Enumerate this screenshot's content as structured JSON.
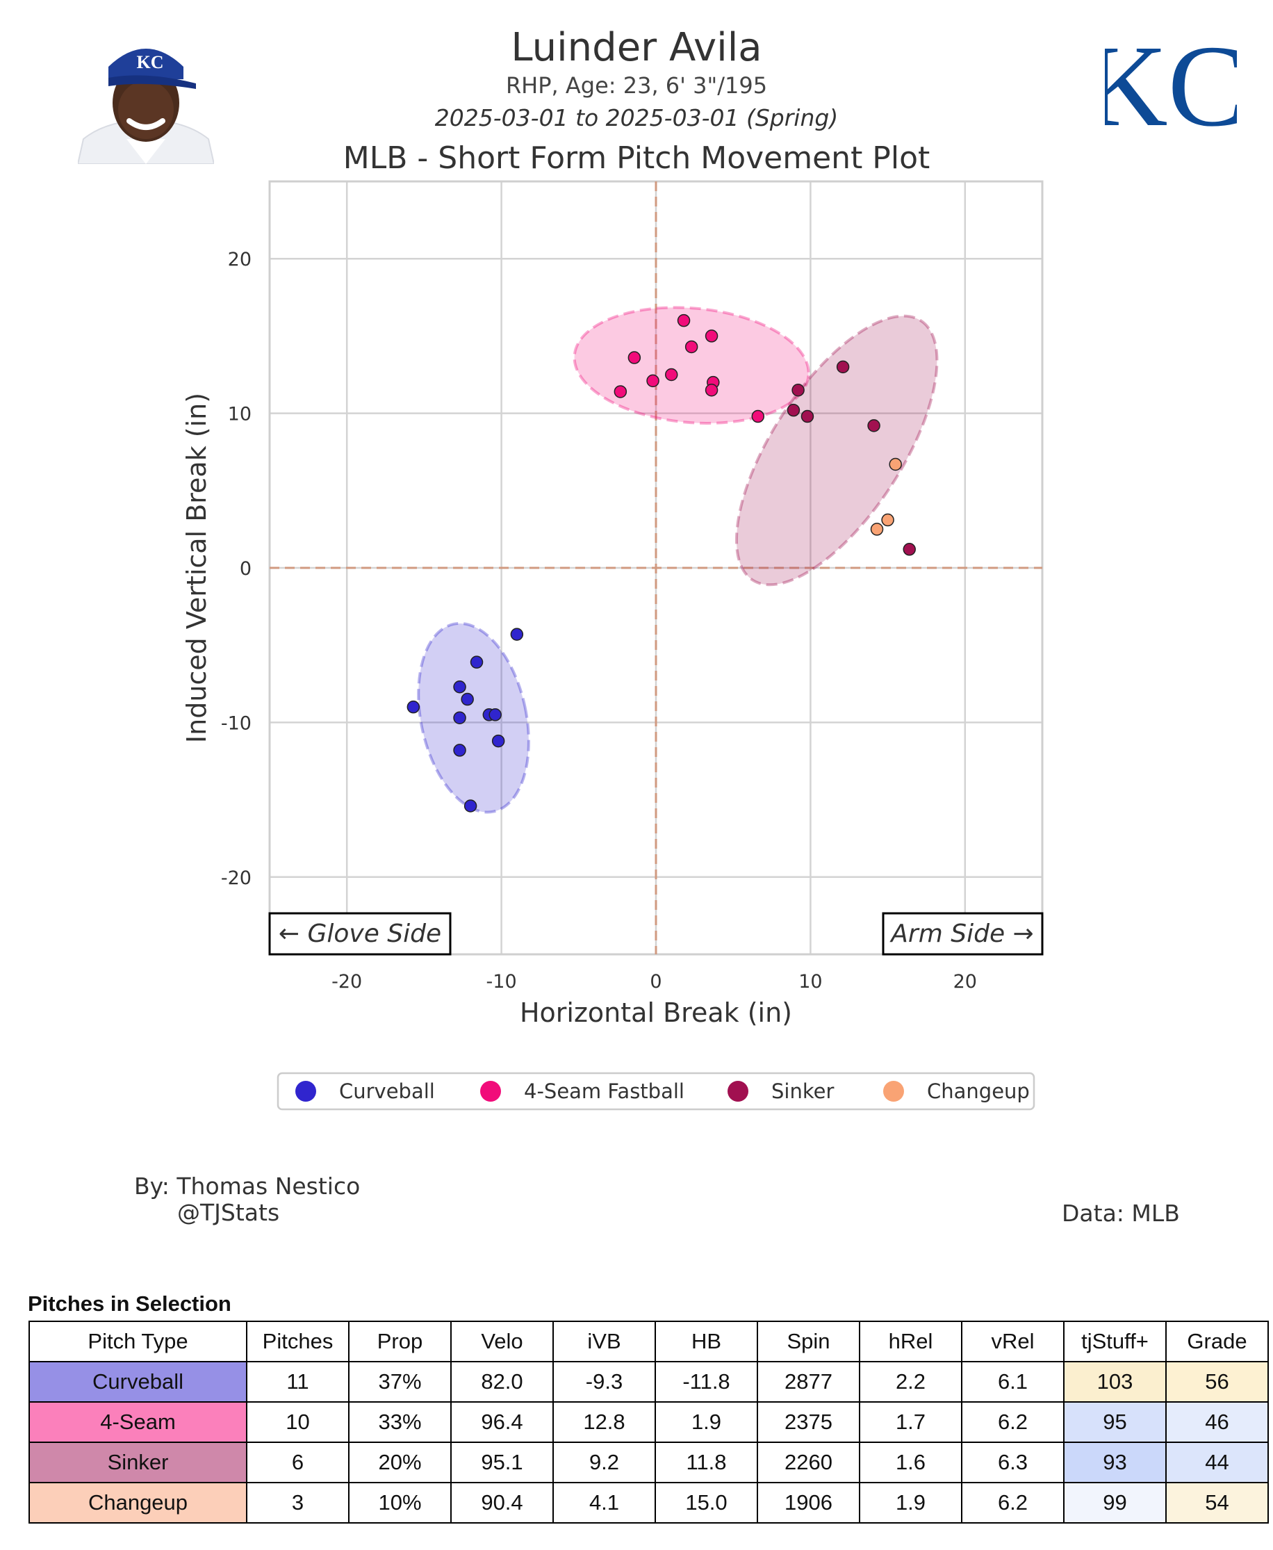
{
  "header": {
    "player_name": "Luinder Avila",
    "bio": "RHP, Age: 23, 6' 3\"/195",
    "date_range": "2025-03-01 to 2025-03-01 (Spring)",
    "plot_title": "MLB - Short Form Pitch Movement Plot",
    "team_logo_text": "KC"
  },
  "credits": {
    "author_line1": "By: Thomas Nestico",
    "author_line2": "@TJStats",
    "data_source": "Data: MLB"
  },
  "chart_data": {
    "type": "scatter",
    "xlabel": "Horizontal Break (in)",
    "ylabel": "Induced Vertical Break (in)",
    "xlim": [
      -25,
      25
    ],
    "ylim": [
      -25,
      25
    ],
    "xticks": [
      -20,
      -10,
      0,
      10,
      20
    ],
    "yticks": [
      20,
      10,
      0,
      -10,
      -20
    ],
    "grid": true,
    "annotations": {
      "left": "← Glove Side",
      "right": "Arm Side →"
    },
    "legend_position": "bottom",
    "series": [
      {
        "name": "Curveball",
        "color": "#3025CE",
        "points": [
          [
            -9.0,
            -4.3
          ],
          [
            -11.6,
            -6.1
          ],
          [
            -12.7,
            -7.7
          ],
          [
            -12.2,
            -8.5
          ],
          [
            -15.7,
            -9.0
          ],
          [
            -12.7,
            -9.7
          ],
          [
            -10.8,
            -9.5
          ],
          [
            -10.4,
            -9.5
          ],
          [
            -10.2,
            -11.2
          ],
          [
            -12.7,
            -11.8
          ],
          [
            -12.0,
            -15.4
          ]
        ],
        "ellipse": {
          "cx": -11.8,
          "cy": -9.7,
          "rx": 3.4,
          "ry": 6.2,
          "angle_deg": -12
        }
      },
      {
        "name": "4-Seam Fastball",
        "color": "#F10C7A",
        "points": [
          [
            1.8,
            16.0
          ],
          [
            3.6,
            15.0
          ],
          [
            2.3,
            14.3
          ],
          [
            -1.4,
            13.6
          ],
          [
            1.0,
            12.5
          ],
          [
            -0.2,
            12.1
          ],
          [
            3.7,
            12.0
          ],
          [
            3.6,
            11.5
          ],
          [
            -2.3,
            11.4
          ],
          [
            6.6,
            9.8
          ]
        ],
        "ellipse": {
          "cx": 2.3,
          "cy": 13.1,
          "rx": 7.6,
          "ry": 3.7,
          "angle_deg": 5
        }
      },
      {
        "name": "Sinker",
        "color": "#A11050",
        "points": [
          [
            12.1,
            13.0
          ],
          [
            9.2,
            11.5
          ],
          [
            8.9,
            10.2
          ],
          [
            9.8,
            9.8
          ],
          [
            14.1,
            9.2
          ],
          [
            16.4,
            1.2
          ]
        ],
        "ellipse": {
          "cx": 11.7,
          "cy": 7.6,
          "rx": 10.0,
          "ry": 4.2,
          "angle_deg": -57
        }
      },
      {
        "name": "Changeup",
        "color": "#F9A374",
        "points": [
          [
            15.5,
            6.7
          ],
          [
            15.0,
            3.1
          ],
          [
            14.3,
            2.5
          ]
        ]
      }
    ]
  },
  "table": {
    "title": "Pitches in Selection",
    "headers": [
      "Pitch Type",
      "Pitches",
      "Prop",
      "Velo",
      "iVB",
      "HB",
      "Spin",
      "hRel",
      "vRel",
      "tjStuff+",
      "Grade"
    ],
    "rows": [
      {
        "cells": [
          "Curveball",
          "11",
          "37%",
          "82.0",
          "-9.3",
          "-11.8",
          "2877",
          "2.2",
          "6.1",
          "103",
          "56"
        ],
        "type_color": "#9690E6",
        "stuff_color": "#FBEFCF",
        "grade_color": "#FDF1D2"
      },
      {
        "cells": [
          "4-Seam",
          "10",
          "33%",
          "96.4",
          "12.8",
          "1.9",
          "2375",
          "1.7",
          "6.2",
          "95",
          "46"
        ],
        "type_color": "#FB80BB",
        "stuff_color": "#D7E1FB",
        "grade_color": "#E5ECFC"
      },
      {
        "cells": [
          "Sinker",
          "6",
          "20%",
          "95.1",
          "9.2",
          "11.8",
          "2260",
          "1.6",
          "6.3",
          "93",
          "44"
        ],
        "type_color": "#CF88AA",
        "stuff_color": "#CBD8FA",
        "grade_color": "#DCE5FB"
      },
      {
        "cells": [
          "Changeup",
          "3",
          "10%",
          "90.4",
          "4.1",
          "15.0",
          "1906",
          "1.9",
          "6.2",
          "99",
          "54"
        ],
        "type_color": "#FCCFB9",
        "stuff_color": "#F2F5FD",
        "grade_color": "#FCF3DD"
      }
    ]
  }
}
